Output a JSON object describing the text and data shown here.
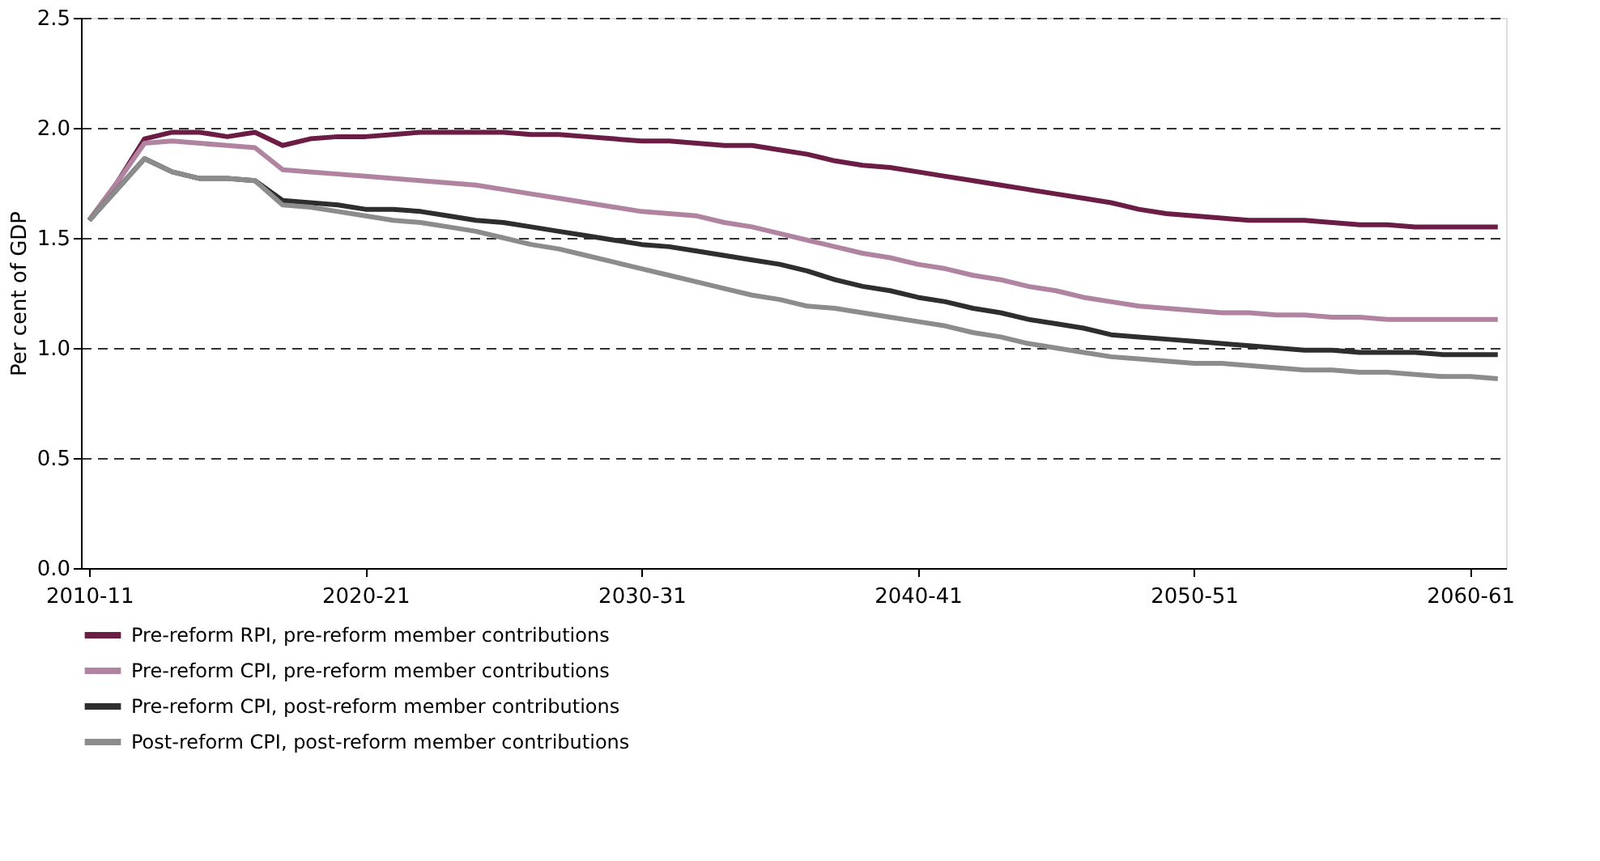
{
  "chart_data": {
    "type": "line",
    "ylabel": "Per cent of GDP",
    "categories": [
      "2010-11",
      null,
      null,
      null,
      null,
      null,
      null,
      null,
      null,
      null,
      "2020-21",
      null,
      null,
      null,
      null,
      null,
      null,
      null,
      null,
      null,
      "2030-31",
      null,
      null,
      null,
      null,
      null,
      null,
      null,
      null,
      null,
      "2040-41",
      null,
      null,
      null,
      null,
      null,
      null,
      null,
      null,
      null,
      "2050-51",
      null,
      null,
      null,
      null,
      null,
      null,
      null,
      null,
      null,
      "2060-61",
      null
    ],
    "ylim": [
      0,
      2.5
    ],
    "yticks": [
      {
        "value": 0,
        "label": "0.0"
      },
      {
        "value": 0.5,
        "label": "0.5"
      },
      {
        "value": 1,
        "label": "1.0"
      },
      {
        "value": 1.5,
        "label": "1.5"
      },
      {
        "value": 2,
        "label": "2.0"
      },
      {
        "value": 2.5,
        "label": "2.5"
      }
    ],
    "grid": "y",
    "legend": "bottom",
    "line_style": "solid",
    "marker": "none",
    "series": [
      {
        "name": "Pre-reform RPI, pre-reform member contributions",
        "color": "#6b1d45",
        "values": [
          1.58,
          1.75,
          1.95,
          1.98,
          1.98,
          1.96,
          1.98,
          1.92,
          1.95,
          1.96,
          1.96,
          1.97,
          1.98,
          1.98,
          1.98,
          1.98,
          1.97,
          1.97,
          1.96,
          1.95,
          1.94,
          1.94,
          1.93,
          1.92,
          1.92,
          1.9,
          1.88,
          1.85,
          1.83,
          1.82,
          1.8,
          1.78,
          1.76,
          1.74,
          1.72,
          1.7,
          1.68,
          1.66,
          1.63,
          1.61,
          1.6,
          1.59,
          1.58,
          1.58,
          1.58,
          1.57,
          1.56,
          1.56,
          1.55,
          1.55,
          1.55,
          1.55
        ]
      },
      {
        "name": "Pre-reform CPI, pre-reform member contributions",
        "color": "#b084a0",
        "values": [
          1.58,
          1.75,
          1.93,
          1.94,
          1.93,
          1.92,
          1.91,
          1.81,
          1.8,
          1.79,
          1.78,
          1.77,
          1.76,
          1.75,
          1.74,
          1.72,
          1.7,
          1.68,
          1.66,
          1.64,
          1.62,
          1.61,
          1.6,
          1.57,
          1.55,
          1.52,
          1.49,
          1.46,
          1.43,
          1.41,
          1.38,
          1.36,
          1.33,
          1.31,
          1.28,
          1.26,
          1.23,
          1.21,
          1.19,
          1.18,
          1.17,
          1.16,
          1.16,
          1.15,
          1.15,
          1.14,
          1.14,
          1.13,
          1.13,
          1.13,
          1.13,
          1.13
        ]
      },
      {
        "name": "Pre-reform CPI, post-reform member contributions",
        "color": "#2e2e2e",
        "values": [
          1.58,
          1.72,
          1.86,
          1.8,
          1.77,
          1.77,
          1.76,
          1.67,
          1.66,
          1.65,
          1.63,
          1.63,
          1.62,
          1.6,
          1.58,
          1.57,
          1.55,
          1.53,
          1.51,
          1.49,
          1.47,
          1.46,
          1.44,
          1.42,
          1.4,
          1.38,
          1.35,
          1.31,
          1.28,
          1.26,
          1.23,
          1.21,
          1.18,
          1.16,
          1.13,
          1.11,
          1.09,
          1.06,
          1.05,
          1.04,
          1.03,
          1.02,
          1.01,
          1.0,
          0.99,
          0.99,
          0.98,
          0.98,
          0.98,
          0.97,
          0.97,
          0.97
        ]
      },
      {
        "name": "Post-reform CPI, post-reform member contributions",
        "color": "#8c8c8c",
        "values": [
          1.58,
          1.72,
          1.86,
          1.8,
          1.77,
          1.77,
          1.76,
          1.65,
          1.64,
          1.62,
          1.6,
          1.58,
          1.57,
          1.55,
          1.53,
          1.5,
          1.47,
          1.45,
          1.42,
          1.39,
          1.36,
          1.33,
          1.3,
          1.27,
          1.24,
          1.22,
          1.19,
          1.18,
          1.16,
          1.14,
          1.12,
          1.1,
          1.07,
          1.05,
          1.02,
          1.0,
          0.98,
          0.96,
          0.95,
          0.94,
          0.93,
          0.93,
          0.92,
          0.91,
          0.9,
          0.9,
          0.89,
          0.89,
          0.88,
          0.87,
          0.87,
          0.86
        ]
      }
    ]
  }
}
